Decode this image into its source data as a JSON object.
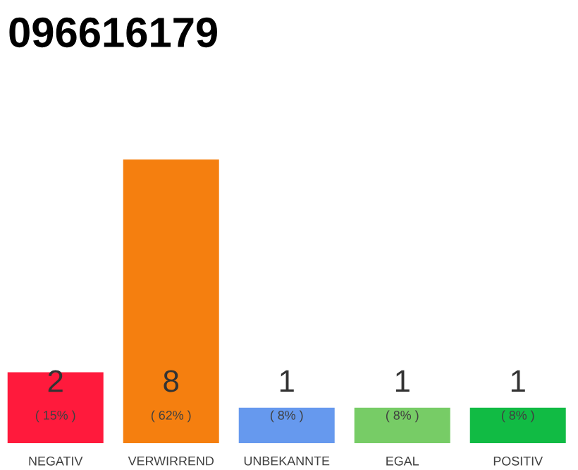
{
  "chart_data": {
    "type": "bar",
    "title": "096616179",
    "categories": [
      "NEGATIV",
      "VERWIRREND",
      "UNBEKANNTE",
      "EGAL",
      "POSITIV"
    ],
    "values": [
      2,
      8,
      1,
      1,
      1
    ],
    "colors": [
      "#ff1a3c",
      "#f57f0f",
      "#6699ee",
      "#77cc66",
      "#11bb44"
    ],
    "ylim": [
      0,
      8
    ],
    "tick_labels": "x",
    "data_labels": true,
    "annotations": [
      "( 15% )",
      "( 62% )",
      "( 8% )",
      "( 8% )",
      "( 8% )"
    ]
  }
}
